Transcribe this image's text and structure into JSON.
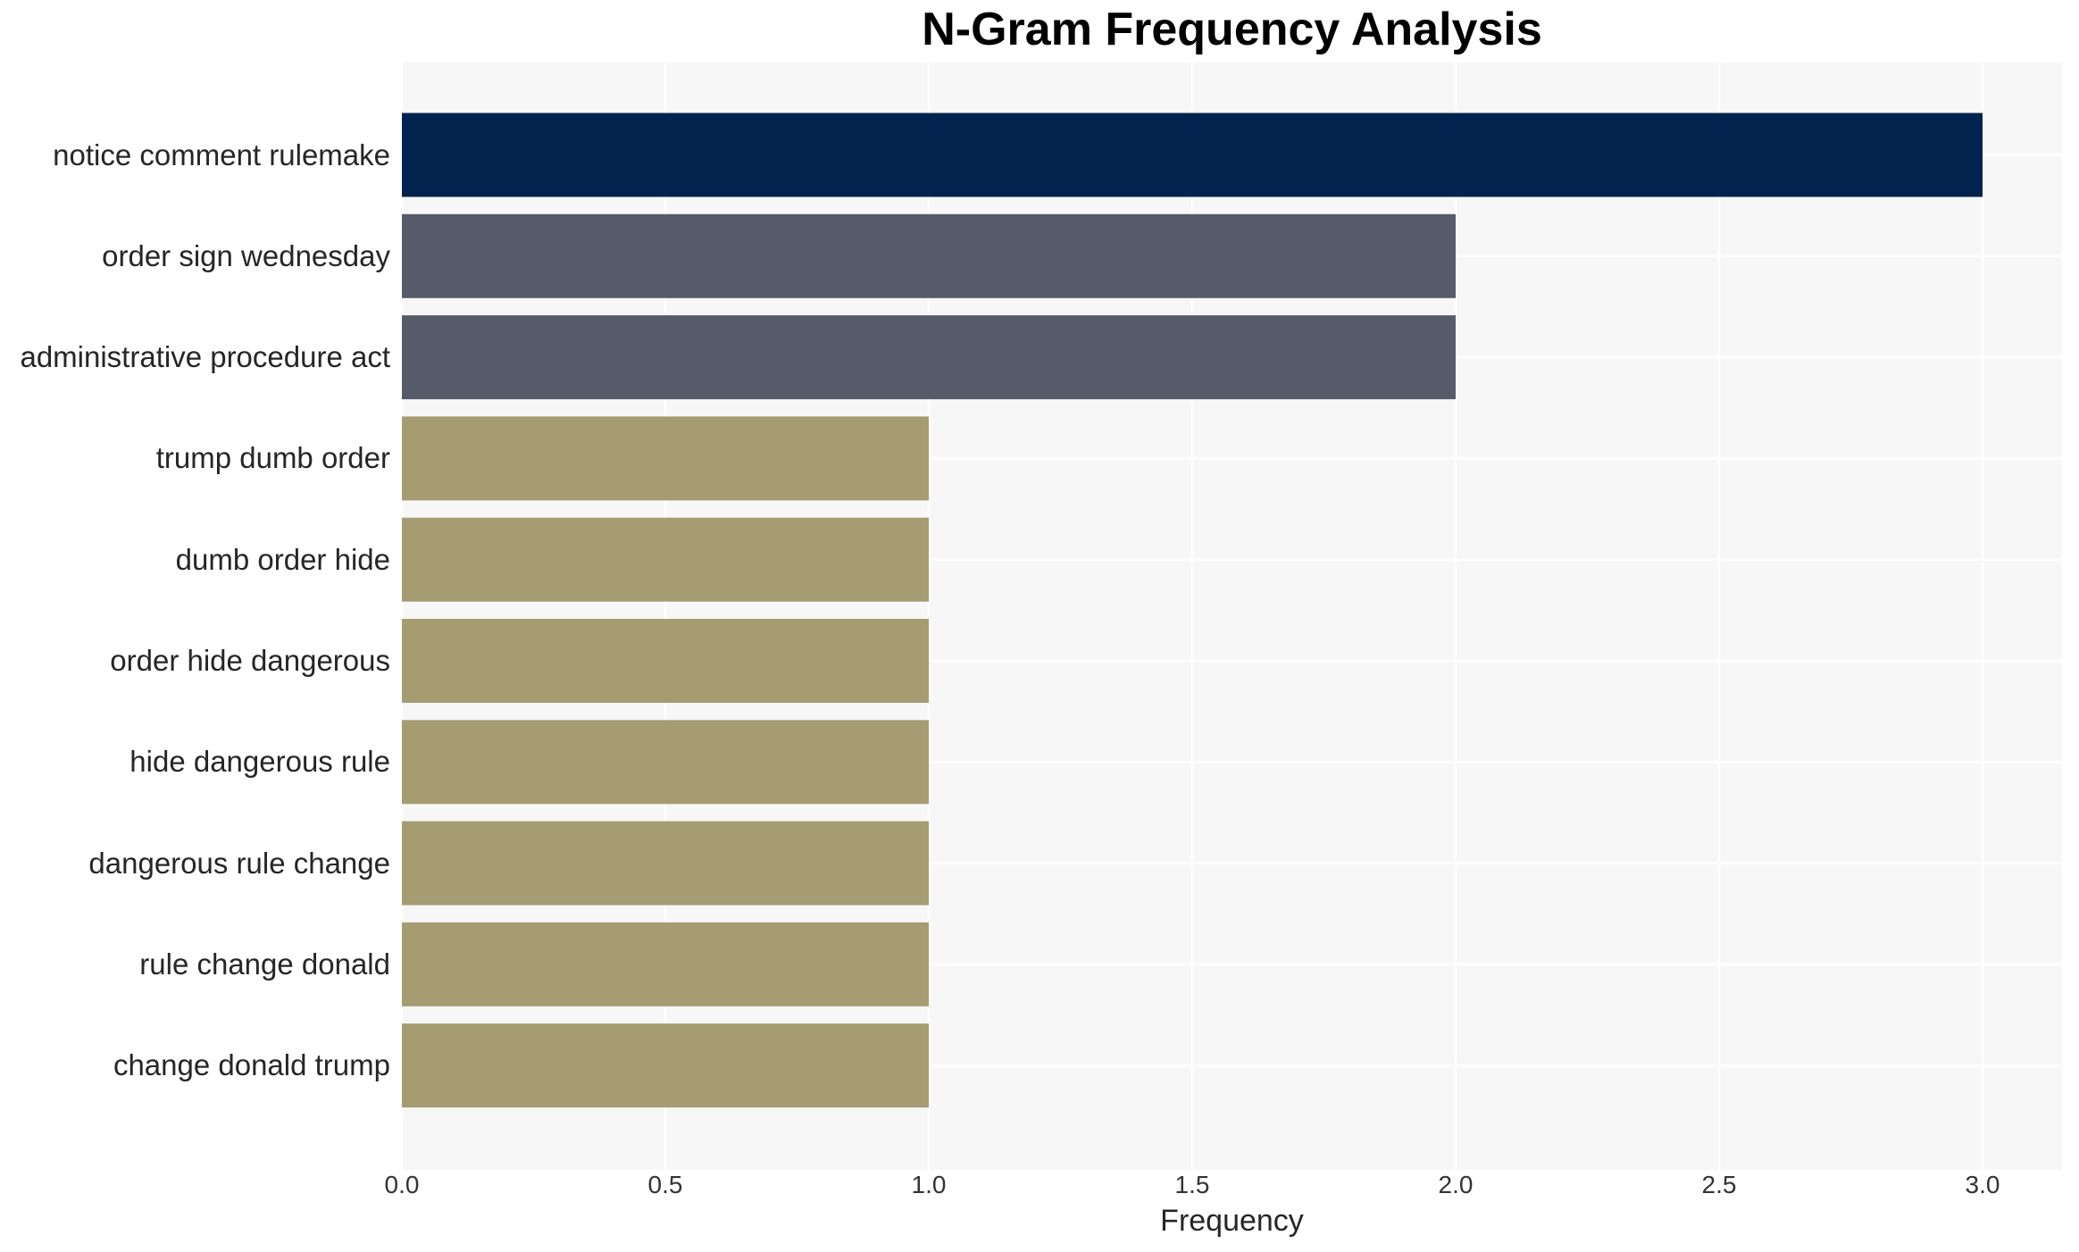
{
  "chart_data": {
    "type": "bar",
    "orientation": "horizontal",
    "title": "N-Gram Frequency Analysis",
    "xlabel": "Frequency",
    "ylabel": "",
    "categories": [
      "notice comment rulemake",
      "order sign wednesday",
      "administrative procedure act",
      "trump dumb order",
      "dumb order hide",
      "order hide dangerous",
      "hide dangerous rule",
      "dangerous rule change",
      "rule change donald",
      "change donald trump"
    ],
    "values": [
      3,
      2,
      2,
      1,
      1,
      1,
      1,
      1,
      1,
      1
    ],
    "bar_colors": [
      "#02234e",
      "#565b6a",
      "#565b6a",
      "#a59c72",
      "#a59c72",
      "#a59c72",
      "#a59c72",
      "#a59c72",
      "#a59c72",
      "#a59c72"
    ],
    "xticks": {
      "values": [
        0,
        0.5,
        1,
        1.5,
        2,
        2.5,
        3
      ],
      "labels": [
        "0.0",
        "0.5",
        "1.0",
        "1.5",
        "2.0",
        "2.5",
        "3.0"
      ]
    },
    "xlim": [
      0,
      3.15
    ],
    "grid": true,
    "legend": false,
    "colors": {
      "plot_background": "#f7f7f8",
      "gridline": "#ffffff",
      "title_text": "#000000",
      "axis_text": "#333333"
    }
  }
}
